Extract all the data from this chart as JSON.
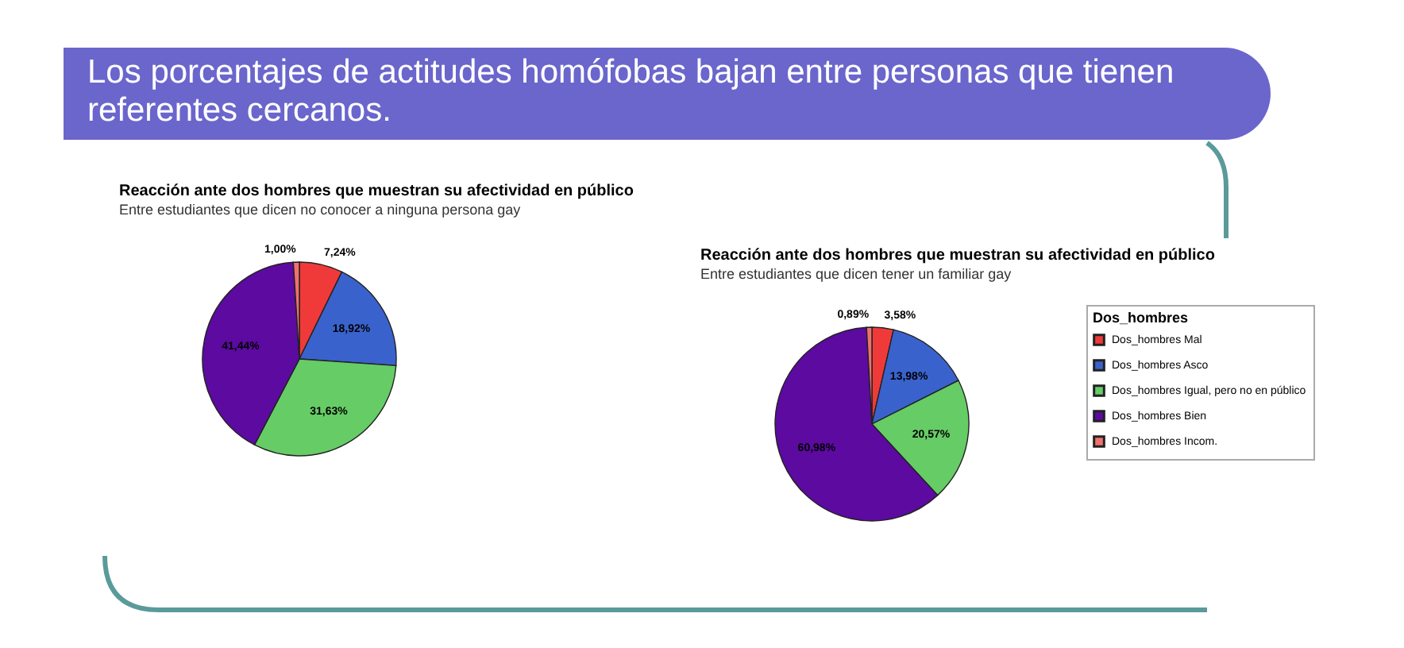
{
  "chart_data": [
    {
      "type": "other",
      "title": "Los porcentajes de actitudes homófobas bajan entre personas que tienen referentes cercanos."
    },
    {
      "type": "pie",
      "title": "Reacción ante dos hombres que muestran su afectividad en público",
      "subtitle": "Entre estudiantes que dicen no conocer a ninguna persona gay",
      "categories": [
        null,
        null,
        null,
        null,
        null
      ],
      "values": [
        7.24,
        18.92,
        31.63,
        41.44,
        1.0
      ],
      "value_labels": [
        "7,24%",
        "18,92%",
        "31,63%",
        "41,44%",
        "1,00%"
      ],
      "colors": [
        "#f03a3a",
        "#3a62cc",
        "#66cc66",
        "#5c0aa0",
        "#f07070"
      ],
      "legend": false
    },
    {
      "type": "pie",
      "title": "Reacción ante dos hombres que muestran su afectividad en público",
      "subtitle": "Entre estudiantes que dicen tener un familiar gay",
      "legend_title": "Dos_hombres",
      "categories": [
        "Dos_hombres Mal",
        "Dos_hombres Asco",
        "Dos_hombres Igual, pero no en público",
        "Dos_hombres Bien",
        "Dos_hombres Incom."
      ],
      "values": [
        3.58,
        13.98,
        20.57,
        60.98,
        0.89
      ],
      "value_labels": [
        "3,58%",
        "13,98%",
        "20,57%",
        "60,98%",
        "0,89%"
      ],
      "colors": [
        "#f03a3a",
        "#3a62cc",
        "#66cc66",
        "#5c0aa0",
        "#f07070"
      ],
      "legend": "right"
    }
  ]
}
